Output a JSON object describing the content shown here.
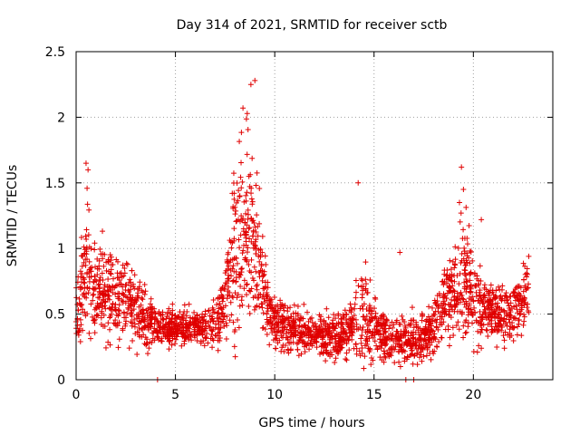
{
  "chart_data": {
    "type": "scatter",
    "title": "Day 314 of 2021, SRMTID for receiver sctb",
    "xlabel": "GPS time / hours",
    "ylabel": "SRMTID / TECUs",
    "xlim": [
      0,
      24
    ],
    "ylim": [
      0,
      2.5
    ],
    "xticks": [
      0,
      5,
      10,
      15,
      20
    ],
    "yticks": [
      0,
      0.5,
      1,
      1.5,
      2,
      2.5
    ],
    "xtick_labels": [
      "0",
      "5",
      "10",
      "15",
      "20"
    ],
    "ytick_labels": [
      "0",
      "0.5",
      "1",
      "1.5",
      "2",
      "2.5"
    ],
    "grid": true,
    "marker": "plus",
    "series": [
      {
        "name": "SRMTID",
        "color": "#e00000",
        "envelope": {
          "x": [
            0,
            0.5,
            1,
            2,
            3,
            4,
            5,
            6,
            7,
            7.5,
            8,
            8.5,
            9,
            9.5,
            10,
            11,
            12,
            13,
            14,
            14.3,
            15,
            16,
            17,
            18,
            18.5,
            19,
            19.5,
            20,
            21,
            22,
            22.8
          ],
          "center": [
            0.5,
            0.9,
            0.65,
            0.65,
            0.55,
            0.4,
            0.4,
            0.42,
            0.4,
            0.6,
            1.0,
            1.2,
            1.0,
            0.6,
            0.45,
            0.38,
            0.35,
            0.33,
            0.38,
            0.5,
            0.4,
            0.3,
            0.3,
            0.35,
            0.6,
            0.65,
            0.8,
            0.6,
            0.5,
            0.5,
            0.65
          ],
          "spread": [
            0.2,
            0.45,
            0.3,
            0.3,
            0.25,
            0.12,
            0.12,
            0.12,
            0.15,
            0.3,
            0.6,
            0.7,
            0.5,
            0.3,
            0.18,
            0.15,
            0.13,
            0.15,
            0.2,
            0.45,
            0.2,
            0.15,
            0.15,
            0.18,
            0.25,
            0.3,
            0.45,
            0.3,
            0.2,
            0.2,
            0.25
          ]
        },
        "count": 2600,
        "outliers": {
          "x": [
            0.5,
            0.6,
            8.8,
            9.0,
            8.4,
            14.2,
            19.4,
            19.5,
            19.3,
            20.4,
            16.3,
            4.1,
            16.6,
            17.0
          ],
          "y": [
            1.65,
            1.6,
            2.25,
            2.28,
            2.07,
            1.5,
            1.62,
            1.45,
            1.35,
            1.22,
            0.97,
            0.0,
            0.0,
            0.0
          ]
        }
      }
    ]
  }
}
